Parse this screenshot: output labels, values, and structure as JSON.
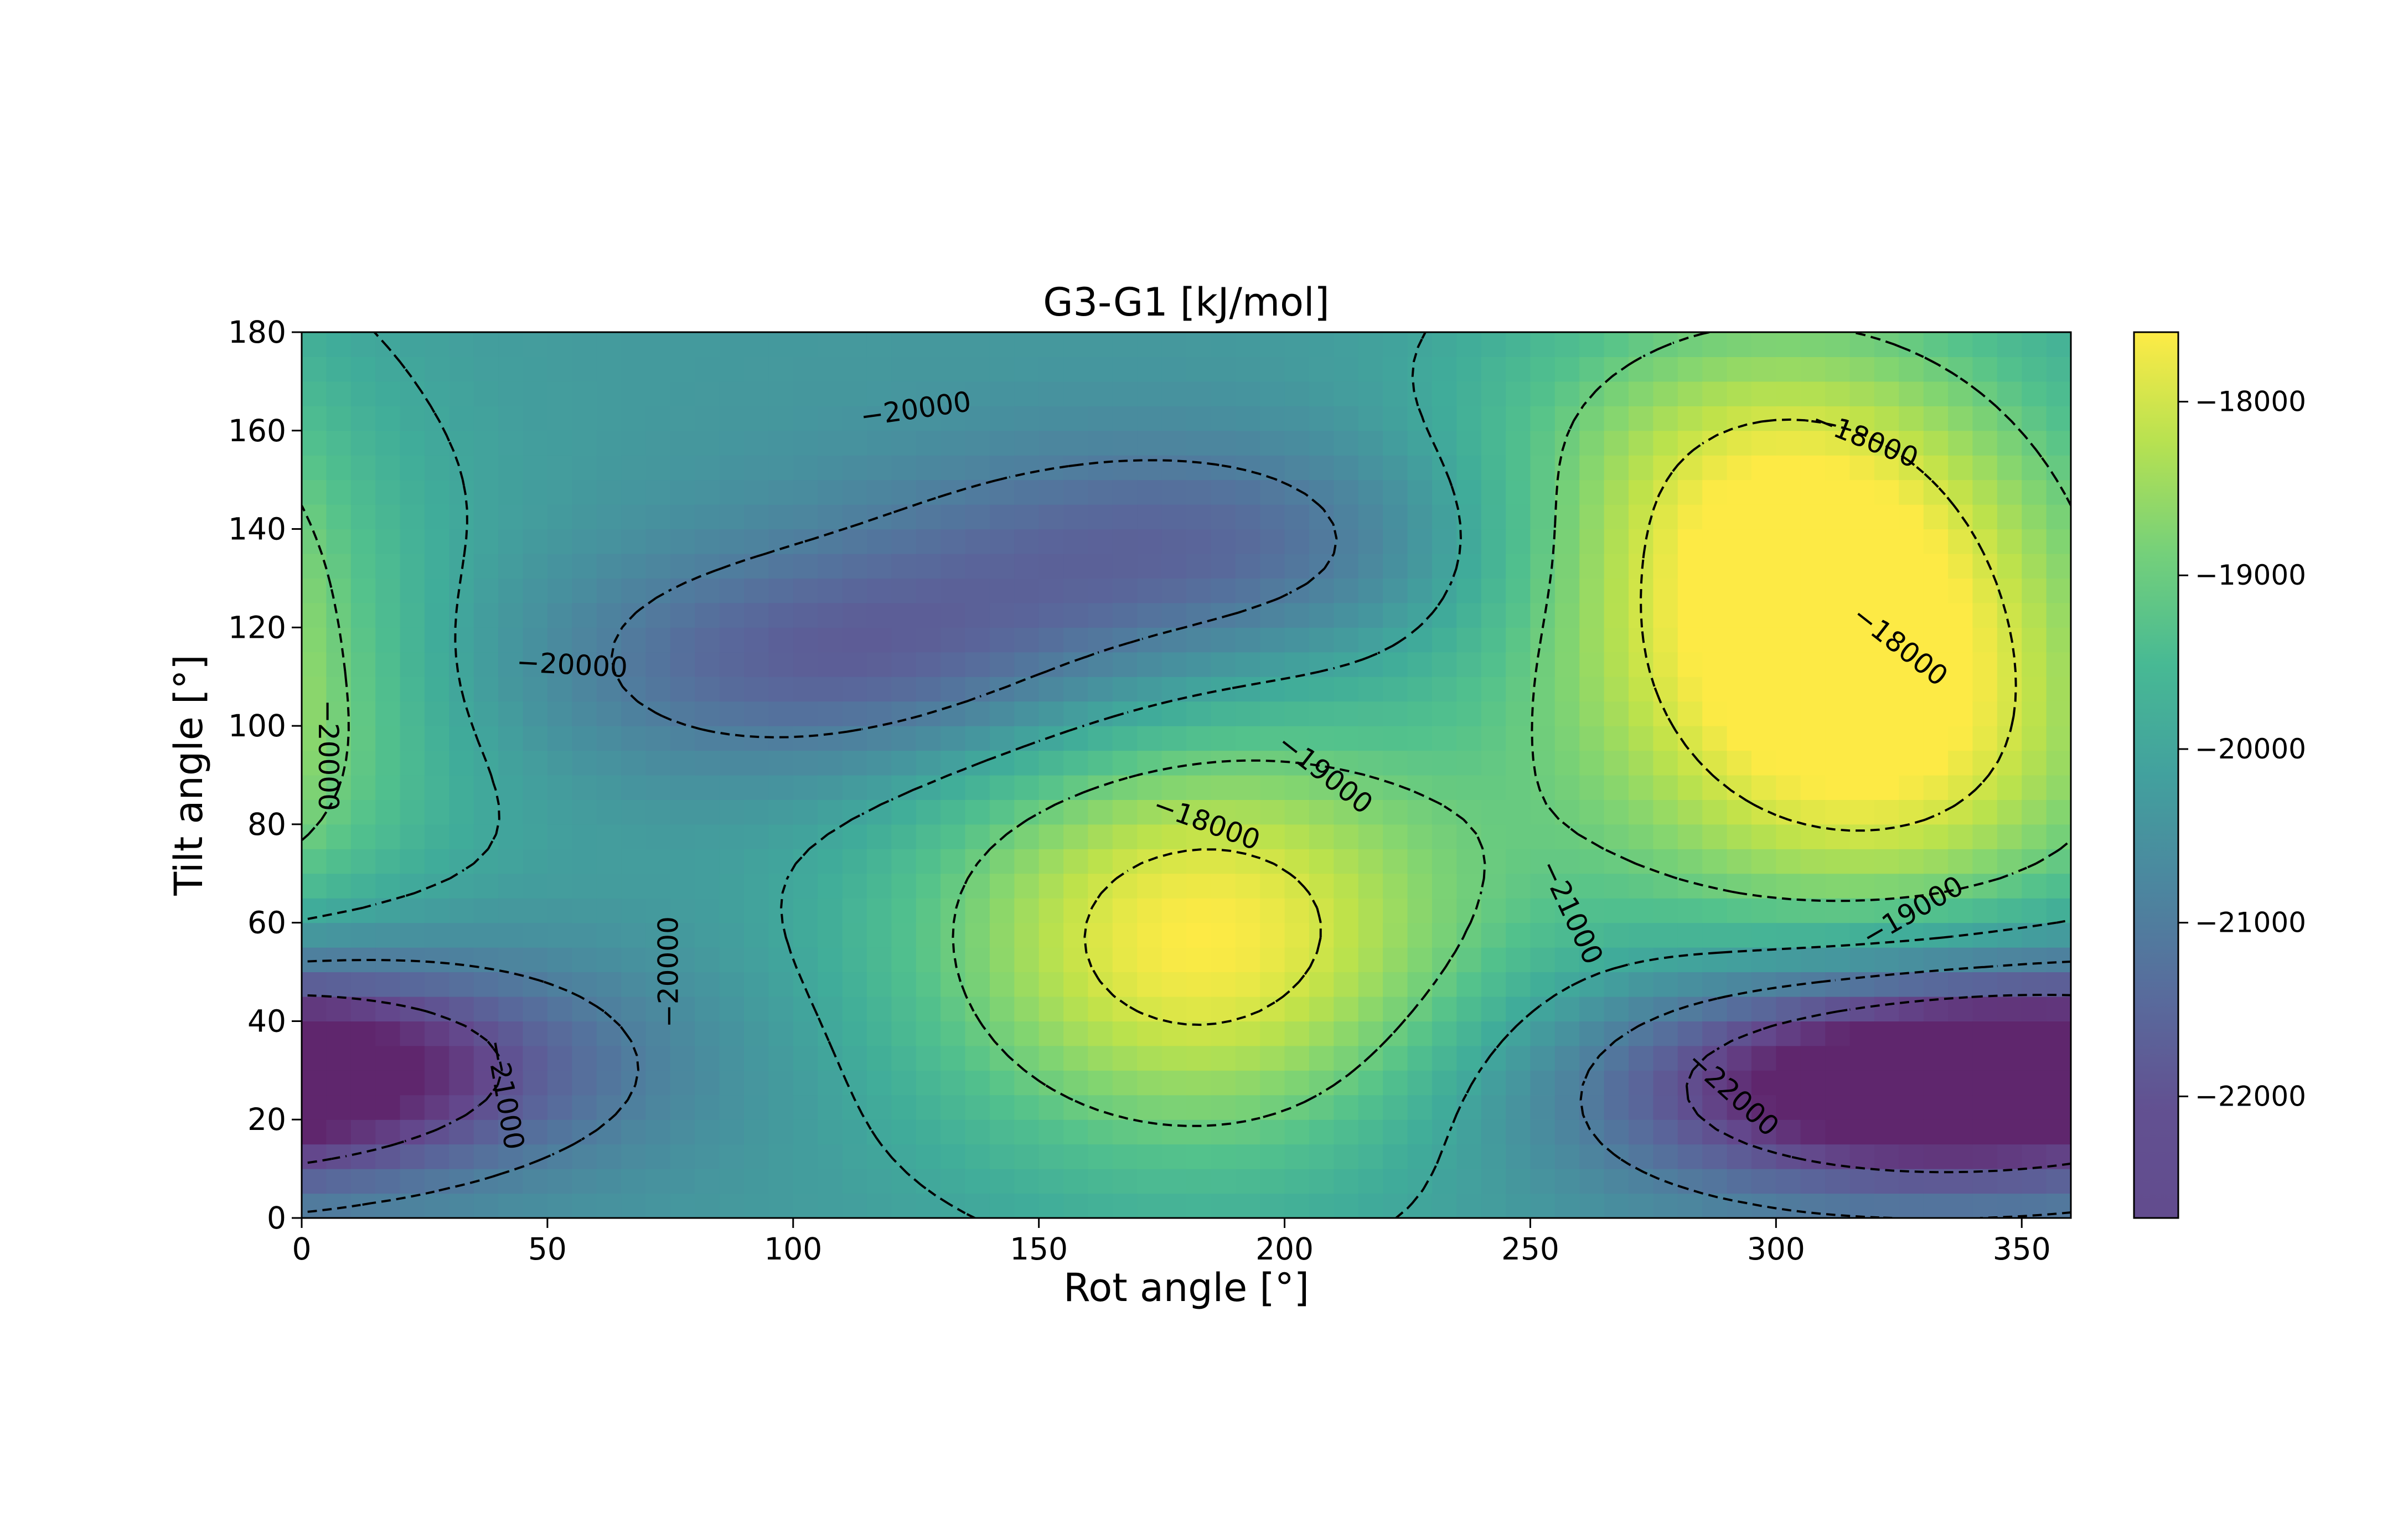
{
  "chart_data": {
    "type": "heatmap",
    "title": "G3-G1 [kJ/mol]",
    "xlabel": "Rot angle [°]",
    "ylabel": "Tilt angle [°]",
    "xlim": [
      0,
      360
    ],
    "ylim": [
      0,
      180
    ],
    "x_ticks": [
      0,
      50,
      100,
      150,
      200,
      250,
      300,
      350
    ],
    "y_ticks": [
      0,
      20,
      40,
      60,
      80,
      100,
      120,
      140,
      160,
      180
    ],
    "x_tick_labels": [
      "0",
      "50",
      "100",
      "150",
      "200",
      "250",
      "300",
      "350"
    ],
    "y_tick_labels": [
      "0",
      "20",
      "40",
      "60",
      "80",
      "100",
      "120",
      "140",
      "160",
      "180"
    ],
    "colormap": "viridis",
    "grid": false,
    "colorbar": {
      "range": [
        -22700,
        -17600
      ],
      "ticks": [
        -18000,
        -19000,
        -20000,
        -21000,
        -22000
      ],
      "tick_labels": [
        "−18000",
        "−19000",
        "−20000",
        "−21000",
        "−22000"
      ]
    },
    "contour_levels": [
      -18000,
      -19000,
      -20000,
      -21000,
      -22000
    ],
    "contour_style": "dashed black",
    "contour_labels": [
      {
        "text": "−20000",
        "x": 125,
        "y": 164,
        "angle": -8
      },
      {
        "text": "−18000",
        "x": 318,
        "y": 158,
        "angle": 22
      },
      {
        "text": "−20000",
        "x": 55,
        "y": 112,
        "angle": 3
      },
      {
        "text": "−18000",
        "x": 325,
        "y": 116,
        "angle": 38
      },
      {
        "text": "−20000",
        "x": 5,
        "y": 94,
        "angle": 90
      },
      {
        "text": "−19000",
        "x": 208,
        "y": 90,
        "angle": 38
      },
      {
        "text": "−18000",
        "x": 184,
        "y": 80,
        "angle": 20
      },
      {
        "text": "−21000",
        "x": 258,
        "y": 62,
        "angle": 65
      },
      {
        "text": "−19000",
        "x": 328,
        "y": 62,
        "angle": -30
      },
      {
        "text": "−20000",
        "x": 75,
        "y": 50,
        "angle": -90
      },
      {
        "text": "−21000",
        "x": 41,
        "y": 25,
        "angle": 80
      },
      {
        "text": "−22000",
        "x": 291,
        "y": 25,
        "angle": 42
      }
    ],
    "energy_features": [
      {
        "kind": "maximum",
        "x": 183,
        "y": 57,
        "value": -17600
      },
      {
        "kind": "maximum",
        "x": 300,
        "y": 145,
        "value": -17900
      },
      {
        "kind": "maximum",
        "x": 320,
        "y": 95,
        "value": -17950
      },
      {
        "kind": "minimum",
        "x": 320,
        "y": 27,
        "value": -22600
      },
      {
        "kind": "minimum",
        "x": 2,
        "y": 32,
        "value": -22200
      },
      {
        "kind": "minimum",
        "x": 110,
        "y": 113,
        "value": -21700
      },
      {
        "kind": "minimum",
        "x": 180,
        "y": 137,
        "value": -21600
      }
    ]
  }
}
